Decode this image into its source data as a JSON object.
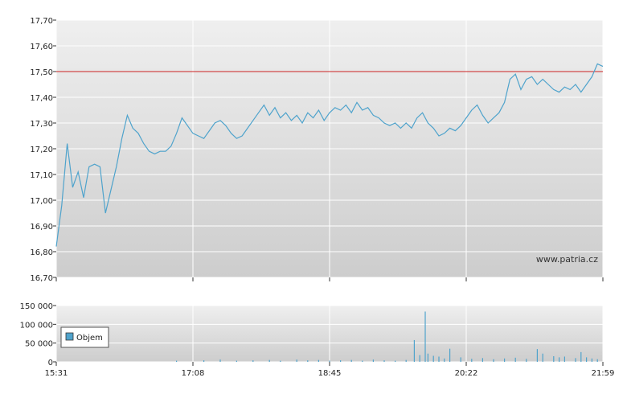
{
  "chart_data": [
    {
      "type": "line",
      "watermark": "www.patria.cz",
      "ylim": [
        16.7,
        17.7
      ],
      "y_ticks": [
        "16,70",
        "16,80",
        "16,90",
        "17,00",
        "17,10",
        "17,20",
        "17,30",
        "17,40",
        "17,50",
        "17,60",
        "17,70"
      ],
      "x_ticks": [
        "15:31",
        "17:08",
        "18:45",
        "20:22",
        "21:59"
      ],
      "reference_line": 17.5,
      "colors": {
        "line": "#4fa3cc",
        "reference": "#cc2222",
        "grid": "#ffffff"
      },
      "grid": true,
      "series": [
        {
          "points": [
            [
              0.0,
              16.82
            ],
            [
              0.01,
              16.98
            ],
            [
              0.02,
              17.22
            ],
            [
              0.03,
              17.05
            ],
            [
              0.04,
              17.11
            ],
            [
              0.05,
              17.01
            ],
            [
              0.06,
              17.13
            ],
            [
              0.07,
              17.14
            ],
            [
              0.08,
              17.13
            ],
            [
              0.09,
              16.95
            ],
            [
              0.1,
              17.04
            ],
            [
              0.11,
              17.13
            ],
            [
              0.12,
              17.24
            ],
            [
              0.13,
              17.33
            ],
            [
              0.14,
              17.28
            ],
            [
              0.15,
              17.26
            ],
            [
              0.16,
              17.22
            ],
            [
              0.17,
              17.19
            ],
            [
              0.18,
              17.18
            ],
            [
              0.19,
              17.19
            ],
            [
              0.2,
              17.19
            ],
            [
              0.21,
              17.21
            ],
            [
              0.22,
              17.26
            ],
            [
              0.23,
              17.32
            ],
            [
              0.24,
              17.29
            ],
            [
              0.25,
              17.26
            ],
            [
              0.26,
              17.25
            ],
            [
              0.27,
              17.24
            ],
            [
              0.28,
              17.27
            ],
            [
              0.29,
              17.3
            ],
            [
              0.3,
              17.31
            ],
            [
              0.31,
              17.29
            ],
            [
              0.32,
              17.26
            ],
            [
              0.33,
              17.24
            ],
            [
              0.34,
              17.25
            ],
            [
              0.35,
              17.28
            ],
            [
              0.36,
              17.31
            ],
            [
              0.37,
              17.34
            ],
            [
              0.38,
              17.37
            ],
            [
              0.39,
              17.33
            ],
            [
              0.4,
              17.36
            ],
            [
              0.41,
              17.32
            ],
            [
              0.42,
              17.34
            ],
            [
              0.43,
              17.31
            ],
            [
              0.44,
              17.33
            ],
            [
              0.45,
              17.3
            ],
            [
              0.46,
              17.34
            ],
            [
              0.47,
              17.32
            ],
            [
              0.48,
              17.35
            ],
            [
              0.49,
              17.31
            ],
            [
              0.5,
              17.34
            ],
            [
              0.51,
              17.36
            ],
            [
              0.52,
              17.35
            ],
            [
              0.53,
              17.37
            ],
            [
              0.54,
              17.34
            ],
            [
              0.55,
              17.38
            ],
            [
              0.56,
              17.35
            ],
            [
              0.57,
              17.36
            ],
            [
              0.58,
              17.33
            ],
            [
              0.59,
              17.32
            ],
            [
              0.6,
              17.3
            ],
            [
              0.61,
              17.29
            ],
            [
              0.62,
              17.3
            ],
            [
              0.63,
              17.28
            ],
            [
              0.64,
              17.3
            ],
            [
              0.65,
              17.28
            ],
            [
              0.66,
              17.32
            ],
            [
              0.67,
              17.34
            ],
            [
              0.68,
              17.3
            ],
            [
              0.69,
              17.28
            ],
            [
              0.7,
              17.25
            ],
            [
              0.71,
              17.26
            ],
            [
              0.72,
              17.28
            ],
            [
              0.73,
              17.27
            ],
            [
              0.74,
              17.29
            ],
            [
              0.75,
              17.32
            ],
            [
              0.76,
              17.35
            ],
            [
              0.77,
              17.37
            ],
            [
              0.78,
              17.33
            ],
            [
              0.79,
              17.3
            ],
            [
              0.8,
              17.32
            ],
            [
              0.81,
              17.34
            ],
            [
              0.82,
              17.38
            ],
            [
              0.83,
              17.47
            ],
            [
              0.84,
              17.49
            ],
            [
              0.85,
              17.43
            ],
            [
              0.86,
              17.47
            ],
            [
              0.87,
              17.48
            ],
            [
              0.88,
              17.45
            ],
            [
              0.89,
              17.47
            ],
            [
              0.9,
              17.45
            ],
            [
              0.91,
              17.43
            ],
            [
              0.92,
              17.42
            ],
            [
              0.93,
              17.44
            ],
            [
              0.94,
              17.43
            ],
            [
              0.95,
              17.45
            ],
            [
              0.96,
              17.42
            ],
            [
              0.97,
              17.45
            ],
            [
              0.98,
              17.48
            ],
            [
              0.99,
              17.53
            ],
            [
              1.0,
              17.52
            ]
          ]
        }
      ]
    },
    {
      "type": "bar",
      "ylim": [
        0,
        150000
      ],
      "y_ticks": [
        "0",
        "50 000",
        "100 000",
        "150 000"
      ],
      "x_ticks": [
        "15:31",
        "17:08",
        "18:45",
        "20:22",
        "21:59"
      ],
      "legend": {
        "label": "Objem",
        "placement": "left"
      },
      "colors": {
        "bar": "#4fa3cc"
      },
      "series": [
        {
          "name": "Objem",
          "points": [
            [
              0.22,
              3000
            ],
            [
              0.27,
              4000
            ],
            [
              0.3,
              6000
            ],
            [
              0.33,
              3000
            ],
            [
              0.36,
              4000
            ],
            [
              0.39,
              5000
            ],
            [
              0.41,
              3000
            ],
            [
              0.44,
              6000
            ],
            [
              0.46,
              4000
            ],
            [
              0.48,
              5000
            ],
            [
              0.5,
              3000
            ],
            [
              0.52,
              4000
            ],
            [
              0.54,
              5000
            ],
            [
              0.56,
              3000
            ],
            [
              0.58,
              6000
            ],
            [
              0.6,
              4000
            ],
            [
              0.62,
              3000
            ],
            [
              0.64,
              5000
            ],
            [
              0.655,
              58000
            ],
            [
              0.665,
              18000
            ],
            [
              0.675,
              134000
            ],
            [
              0.68,
              22000
            ],
            [
              0.69,
              16000
            ],
            [
              0.7,
              14000
            ],
            [
              0.71,
              9000
            ],
            [
              0.72,
              35000
            ],
            [
              0.74,
              12000
            ],
            [
              0.76,
              8000
            ],
            [
              0.78,
              10000
            ],
            [
              0.8,
              7000
            ],
            [
              0.82,
              9000
            ],
            [
              0.84,
              11000
            ],
            [
              0.86,
              8000
            ],
            [
              0.88,
              34000
            ],
            [
              0.89,
              22000
            ],
            [
              0.91,
              15000
            ],
            [
              0.92,
              12000
            ],
            [
              0.93,
              14000
            ],
            [
              0.95,
              10000
            ],
            [
              0.96,
              26000
            ],
            [
              0.97,
              12000
            ],
            [
              0.98,
              9000
            ],
            [
              0.99,
              7000
            ]
          ]
        }
      ]
    }
  ]
}
